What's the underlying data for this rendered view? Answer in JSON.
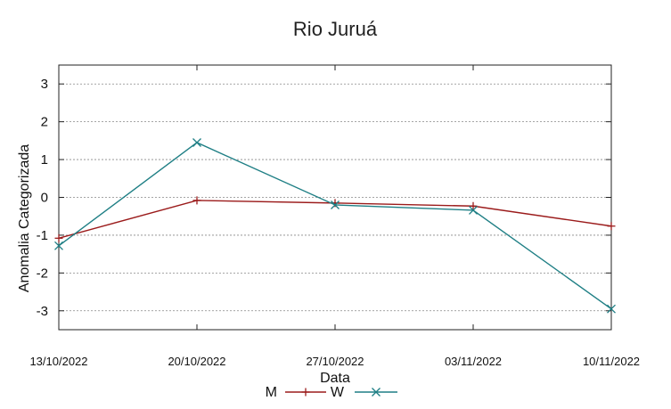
{
  "chart_data": {
    "type": "line",
    "title": "Rio Juruá",
    "xlabel": "Data",
    "ylabel": "Anomalia Categorizada",
    "categories": [
      "13/10/2022",
      "20/10/2022",
      "27/10/2022",
      "03/11/2022",
      "10/11/2022"
    ],
    "ylim": [
      -3.5,
      3.5
    ],
    "yticks": [
      3,
      2,
      1,
      0,
      -1,
      -2,
      -3
    ],
    "ytick_labels": [
      "3",
      "2",
      "1",
      "0",
      "-1",
      "-2",
      "-3"
    ],
    "grid": true,
    "legend_position": "bottom-center",
    "series": [
      {
        "name": "M",
        "values": [
          -1.08,
          -0.08,
          -0.15,
          -0.23,
          -0.76
        ],
        "color": "#9b1b1b",
        "marker": "plus"
      },
      {
        "name": "W",
        "values": [
          -1.28,
          1.45,
          -0.2,
          -0.34,
          -2.95
        ],
        "color": "#1f7f85",
        "marker": "x"
      }
    ]
  }
}
